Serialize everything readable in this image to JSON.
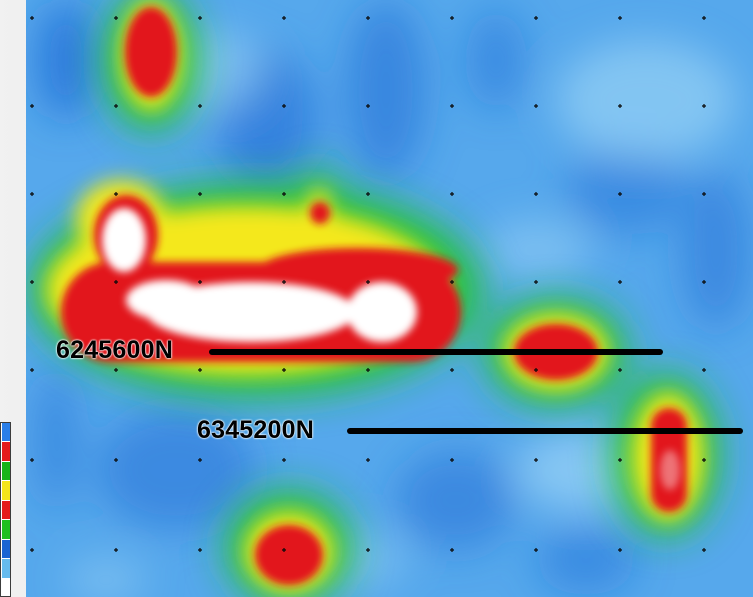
{
  "survey_lines": [
    {
      "label": "6245600N"
    },
    {
      "label": "6345200N"
    }
  ],
  "colors": {
    "low": "#1a64d2",
    "background": "#58a9ec",
    "mid": "#1fbf1f",
    "transition": "#f7ea1c",
    "high": "#e40f0f",
    "peak": "#ffffff",
    "line": "#000000"
  },
  "legend": {
    "colors": [
      "#2a7ee8",
      "#e41b1b",
      "#18b418",
      "#f3e41a",
      "#e41b1b",
      "#1fbf1f",
      "#1a64d2",
      "#66bbee",
      "#ffffff"
    ]
  }
}
